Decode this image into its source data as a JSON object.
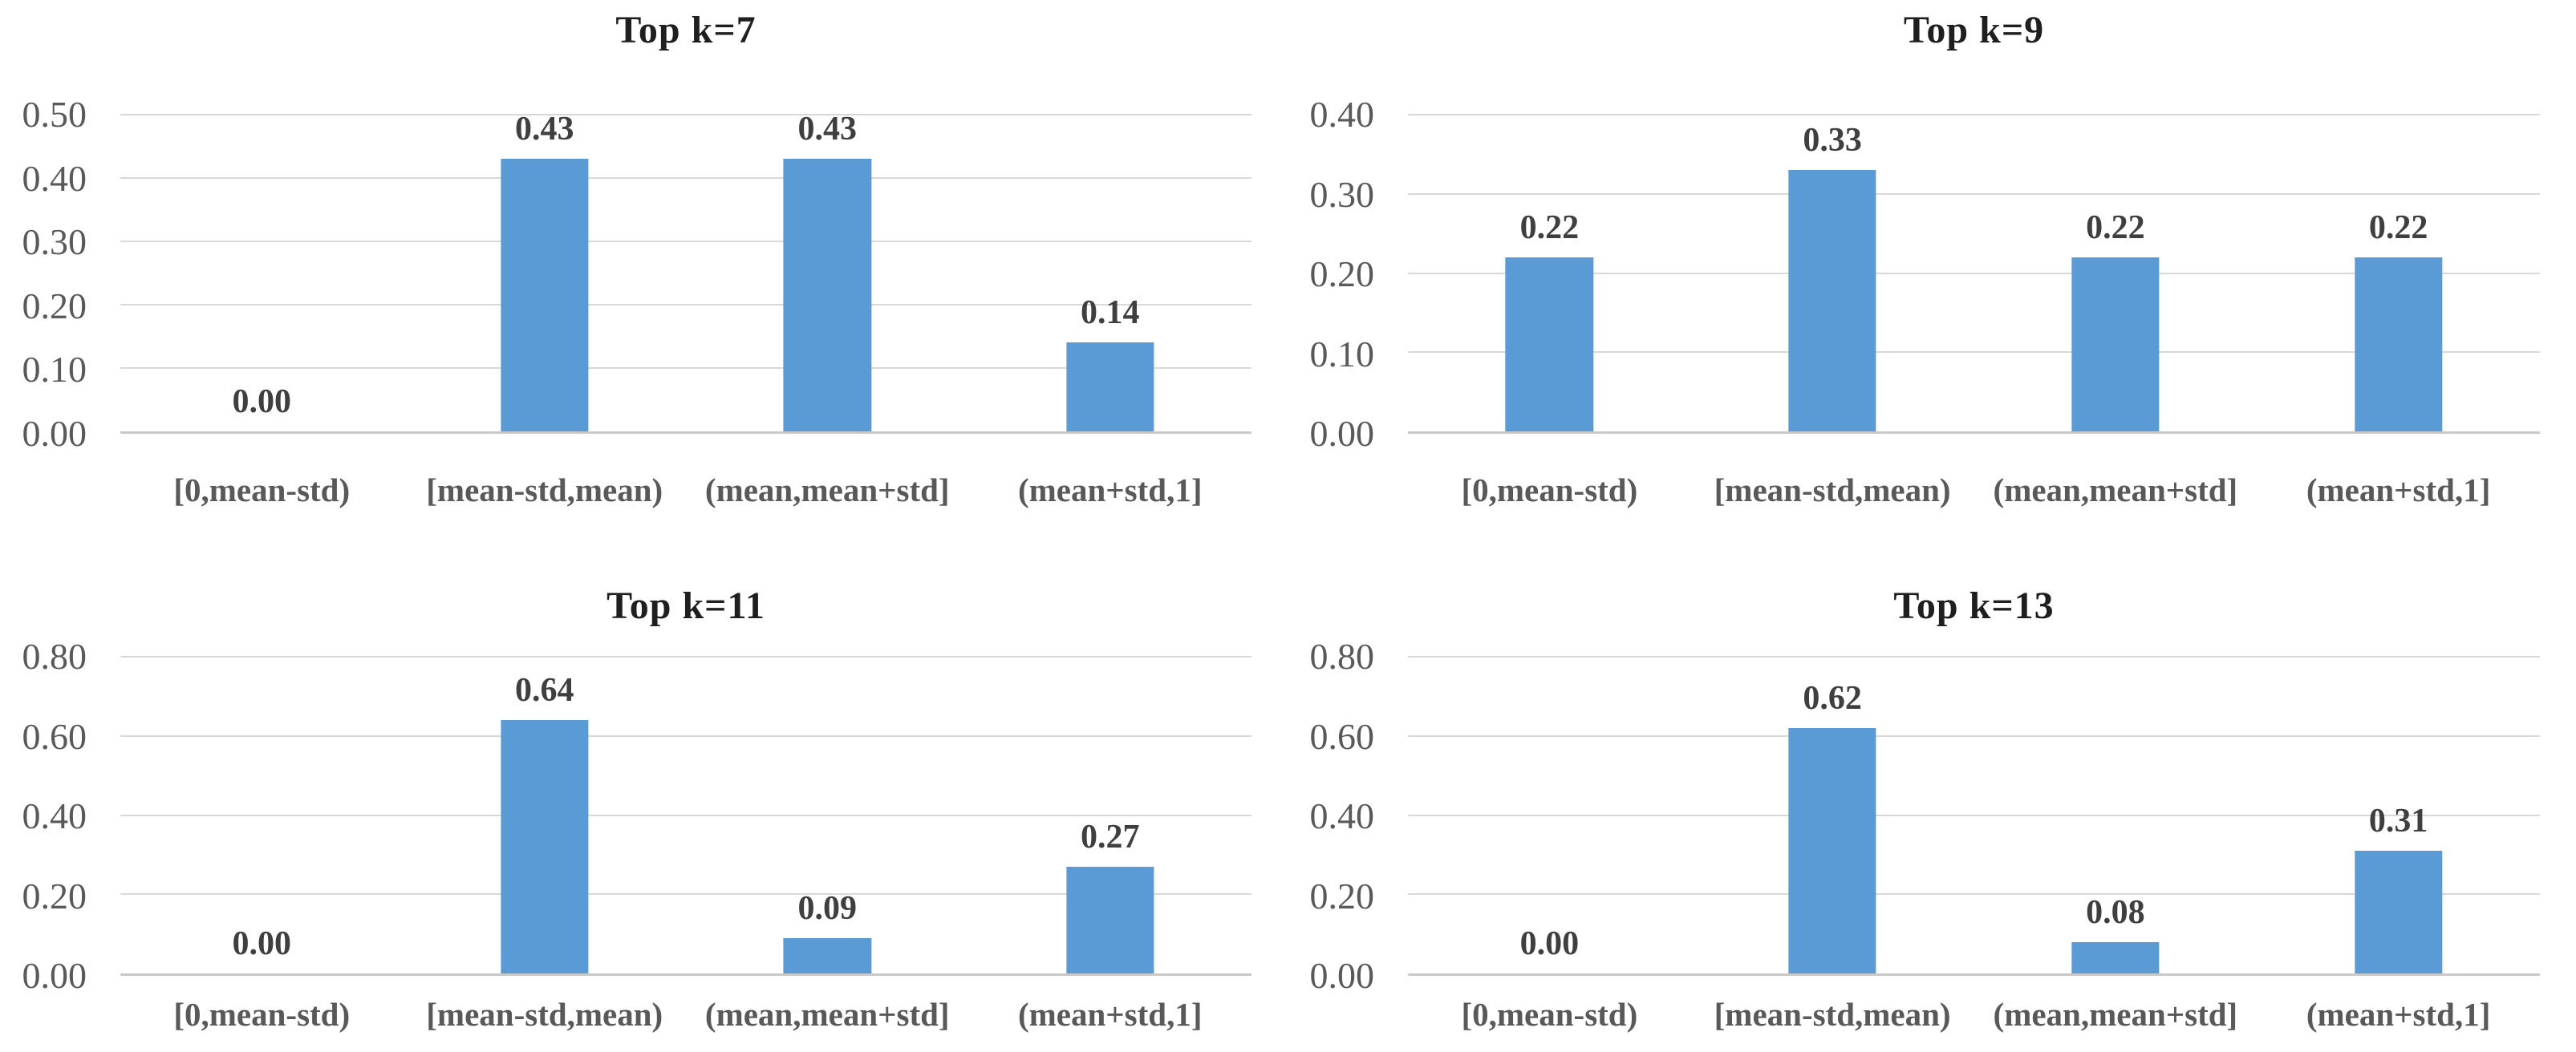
{
  "style": {
    "page_background": "#FFFFFF",
    "bar_color": "#5B9BD5",
    "gridline_color": "#D9D9D9",
    "baseline_color": "#C9C9C9",
    "tick_label_color": "#595959",
    "data_label_color": "#3F3F3F",
    "category_label_color": "#595959",
    "title_color": "#1F1F1F"
  },
  "chart_data": [
    {
      "type": "bar",
      "title": "Top k=7",
      "categories": [
        "[0,mean-std)",
        "[mean-std,mean)",
        "(mean,mean+std]",
        "(mean+std,1]"
      ],
      "values": [
        0.0,
        0.43,
        0.43,
        0.14
      ],
      "value_labels": [
        "0.00",
        "0.43",
        "0.43",
        "0.14"
      ],
      "xlabel": "",
      "ylabel": "",
      "ylim": [
        0,
        0.5
      ],
      "ytick_values": [
        0.0,
        0.1,
        0.2,
        0.3,
        0.4,
        0.5
      ],
      "ytick_labels": [
        "0.00",
        "0.10",
        "0.20",
        "0.30",
        "0.40",
        "0.50"
      ],
      "grid": true,
      "legend": false,
      "data_labels_position": "outside-end"
    },
    {
      "type": "bar",
      "title": "Top k=9",
      "categories": [
        "[0,mean-std)",
        "[mean-std,mean)",
        "(mean,mean+std]",
        "(mean+std,1]"
      ],
      "values": [
        0.22,
        0.33,
        0.22,
        0.22
      ],
      "value_labels": [
        "0.22",
        "0.33",
        "0.22",
        "0.22"
      ],
      "xlabel": "",
      "ylabel": "",
      "ylim": [
        0,
        0.4
      ],
      "ytick_values": [
        0.0,
        0.1,
        0.2,
        0.3,
        0.4
      ],
      "ytick_labels": [
        "0.00",
        "0.10",
        "0.20",
        "0.30",
        "0.40"
      ],
      "grid": true,
      "legend": false,
      "data_labels_position": "outside-end"
    },
    {
      "type": "bar",
      "title": "Top k=11",
      "categories": [
        "[0,mean-std)",
        "[mean-std,mean)",
        "(mean,mean+std]",
        "(mean+std,1]"
      ],
      "values": [
        0.0,
        0.64,
        0.09,
        0.27
      ],
      "value_labels": [
        "0.00",
        "0.64",
        "0.09",
        "0.27"
      ],
      "xlabel": "",
      "ylabel": "",
      "ylim": [
        0,
        0.8
      ],
      "ytick_values": [
        0.0,
        0.2,
        0.4,
        0.6,
        0.8
      ],
      "ytick_labels": [
        "0.00",
        "0.20",
        "0.40",
        "0.60",
        "0.80"
      ],
      "grid": true,
      "legend": false,
      "data_labels_position": "outside-end"
    },
    {
      "type": "bar",
      "title": "Top k=13",
      "categories": [
        "[0,mean-std)",
        "[mean-std,mean)",
        "(mean,mean+std]",
        "(mean+std,1]"
      ],
      "values": [
        0.0,
        0.62,
        0.08,
        0.31
      ],
      "value_labels": [
        "0.00",
        "0.62",
        "0.08",
        "0.31"
      ],
      "xlabel": "",
      "ylabel": "",
      "ylim": [
        0,
        0.8
      ],
      "ytick_values": [
        0.0,
        0.2,
        0.4,
        0.6,
        0.8
      ],
      "ytick_labels": [
        "0.00",
        "0.20",
        "0.40",
        "0.60",
        "0.80"
      ],
      "grid": true,
      "legend": false,
      "data_labels_position": "outside-end"
    }
  ]
}
